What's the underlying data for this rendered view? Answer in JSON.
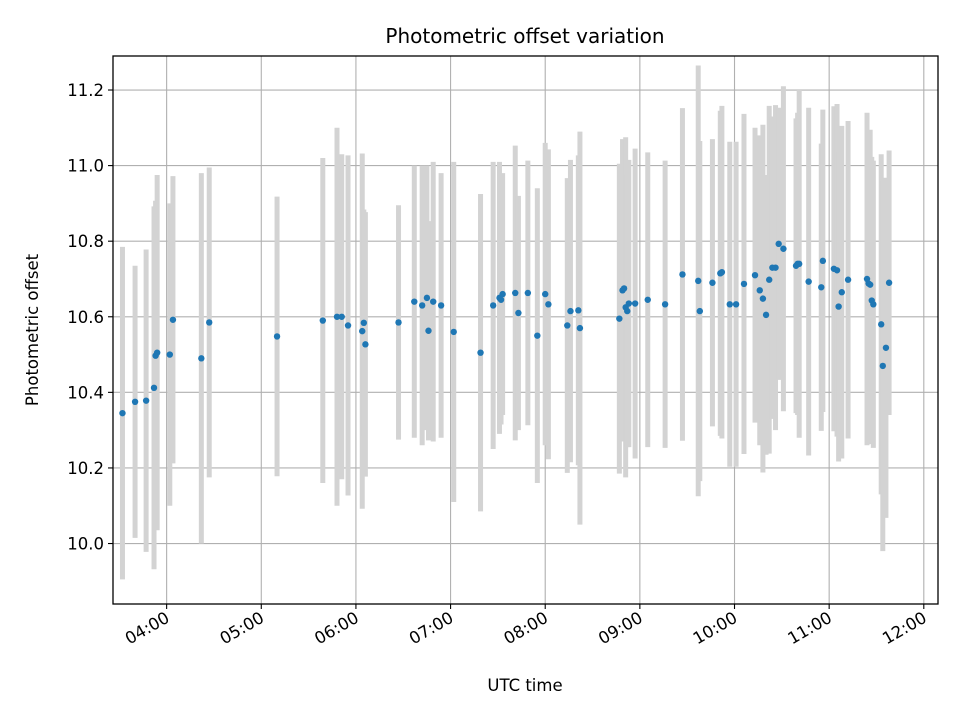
{
  "chart_data": {
    "type": "scatter",
    "title": "Photometric offset variation",
    "xlabel": "UTC time",
    "ylabel": "Photometric offset",
    "x_ticks": [
      "04:00",
      "05:00",
      "06:00",
      "07:00",
      "08:00",
      "09:00",
      "10:00",
      "11:00",
      "12:00"
    ],
    "y_ticks": [
      "10.0",
      "10.2",
      "10.4",
      "10.6",
      "10.8",
      "11.0",
      "11.2"
    ],
    "xlim": [
      "03:26",
      "12:09"
    ],
    "ylim": [
      9.84,
      11.29
    ],
    "grid": true,
    "colors": {
      "point": "#1f77b4",
      "errorbar": "#d3d3d3",
      "grid": "#b0b0b0",
      "axes": "#000000"
    },
    "series": [
      {
        "x": [
          "03:32",
          "03:40",
          "03:47",
          "03:52",
          "03:53",
          "03:54",
          "04:02",
          "04:04",
          "04:22",
          "04:27",
          "05:10",
          "05:39",
          "05:48",
          "05:51",
          "05:55",
          "06:04",
          "06:05",
          "06:06",
          "06:27",
          "06:37",
          "06:42",
          "06:45",
          "06:46",
          "06:49",
          "06:54",
          "07:02",
          "07:19",
          "07:27",
          "07:31",
          "07:32",
          "07:33",
          "07:41",
          "07:43",
          "07:49",
          "07:55",
          "08:00",
          "08:02",
          "08:14",
          "08:16",
          "08:21",
          "08:22",
          "08:47",
          "08:49",
          "08:50",
          "08:51",
          "08:52",
          "08:53",
          "08:57",
          "09:05",
          "09:16",
          "09:27",
          "09:37",
          "09:38",
          "09:46",
          "09:51",
          "09:52",
          "09:57",
          "10:01",
          "10:06",
          "10:13",
          "10:16",
          "10:18",
          "10:20",
          "10:22",
          "10:24",
          "10:26",
          "10:28",
          "10:31",
          "10:39",
          "10:40",
          "10:41",
          "10:47",
          "10:55",
          "10:56",
          "11:03",
          "11:05",
          "11:06",
          "11:08",
          "11:12",
          "11:24",
          "11:25",
          "11:26",
          "11:27",
          "11:28",
          "11:33",
          "11:34",
          "11:36",
          "11:38"
        ],
        "y": [
          10.345,
          10.375,
          10.378,
          10.412,
          10.497,
          10.505,
          10.5,
          10.592,
          10.49,
          10.585,
          10.548,
          10.59,
          10.6,
          10.6,
          10.577,
          10.562,
          10.584,
          10.527,
          10.585,
          10.64,
          10.63,
          10.65,
          10.563,
          10.64,
          10.63,
          10.56,
          10.505,
          10.63,
          10.65,
          10.645,
          10.66,
          10.663,
          10.61,
          10.663,
          10.55,
          10.66,
          10.633,
          10.577,
          10.615,
          10.617,
          10.57,
          10.595,
          10.67,
          10.675,
          10.625,
          10.615,
          10.635,
          10.635,
          10.645,
          10.633,
          10.712,
          10.695,
          10.615,
          10.69,
          10.715,
          10.718,
          10.633,
          10.633,
          10.687,
          10.71,
          10.67,
          10.648,
          10.605,
          10.698,
          10.73,
          10.73,
          10.793,
          10.78,
          10.735,
          10.74,
          10.74,
          10.693,
          10.678,
          10.748,
          10.727,
          10.723,
          10.627,
          10.665,
          10.698,
          10.7,
          10.688,
          10.685,
          10.643,
          10.633,
          10.58,
          10.47,
          10.518,
          10.69
        ],
        "err": [
          0.44,
          0.36,
          0.4,
          0.48,
          0.41,
          0.47,
          0.4,
          0.38,
          0.49,
          0.41,
          0.37,
          0.43,
          0.5,
          0.43,
          0.45,
          0.47,
          0.3,
          0.35,
          0.31,
          0.36,
          0.37,
          0.35,
          0.29,
          0.37,
          0.35,
          0.45,
          0.42,
          0.38,
          0.36,
          0.33,
          0.32,
          0.39,
          0.31,
          0.35,
          0.39,
          0.4,
          0.41,
          0.39,
          0.4,
          0.41,
          0.52,
          0.41,
          0.4,
          0.39,
          0.45,
          0.36,
          0.38,
          0.41,
          0.39,
          0.38,
          0.44,
          0.57,
          0.45,
          0.38,
          0.43,
          0.44,
          0.43,
          0.43,
          0.45,
          0.39,
          0.41,
          0.46,
          0.37,
          0.46,
          0.4,
          0.43,
          0.36,
          0.43,
          0.39,
          0.4,
          0.46,
          0.46,
          0.38,
          0.4,
          0.43,
          0.44,
          0.41,
          0.44,
          0.42,
          0.44,
          0.39,
          0.41,
          0.38,
          0.38,
          0.45,
          0.49,
          0.45,
          0.35
        ]
      }
    ]
  }
}
